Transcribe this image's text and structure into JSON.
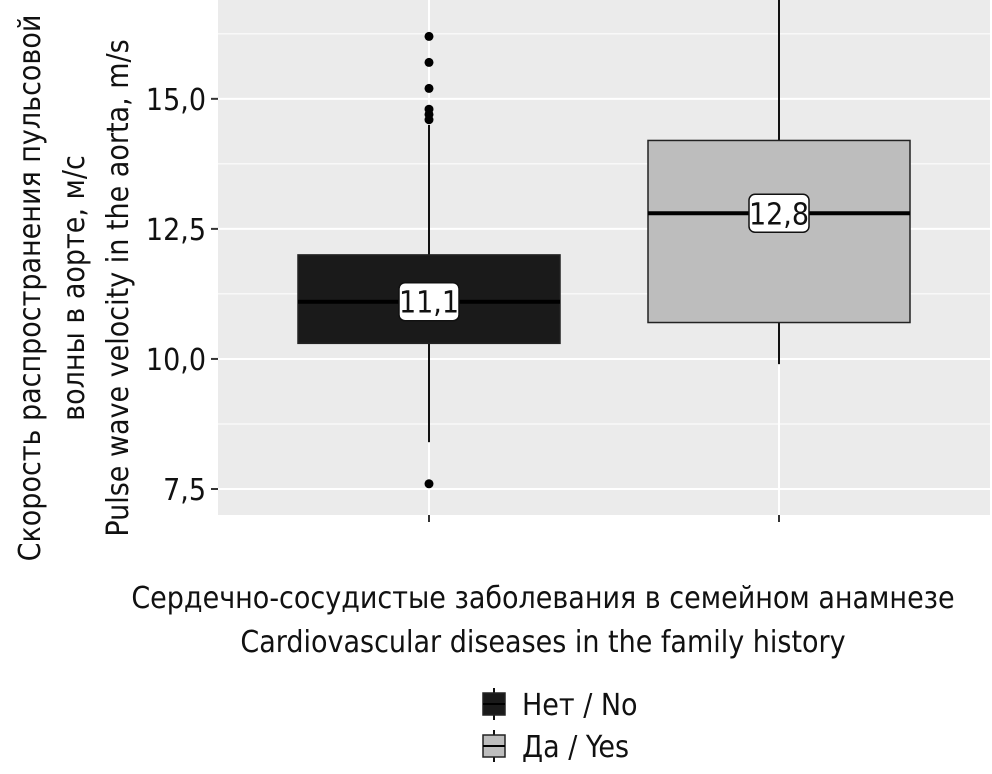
{
  "chart_data": {
    "type": "box",
    "ylabel_lines": [
      "Скорость распространения пульсовой",
      "волны в аорте, м/с",
      "Pulse wave velocity in the aorta, m/s"
    ],
    "xlabel_lines": [
      "Сердечно-сосудистые заболевания в семейном анамнезе",
      "Cardiovascular diseases in the family history"
    ],
    "ylim": [
      7.0,
      16.9
    ],
    "y_ticks": [
      {
        "value": 7.5,
        "label": "7,5"
      },
      {
        "value": 10.0,
        "label": "10,0"
      },
      {
        "value": 12.5,
        "label": "12,5"
      },
      {
        "value": 15.0,
        "label": "15,0"
      }
    ],
    "grid": true,
    "legend_position": "bottom",
    "series": [
      {
        "name": "Нет / No",
        "color": "#1a1a1a",
        "whisker_low": 8.4,
        "q1": 10.3,
        "median": 11.1,
        "q3": 12.0,
        "whisker_high": 14.5,
        "median_label": "11,1",
        "outliers": [
          7.6,
          14.6,
          14.7,
          14.8,
          15.2,
          15.7,
          16.2
        ]
      },
      {
        "name": "Да / Yes",
        "color": "#bdbdbd",
        "whisker_low": 9.9,
        "q1": 10.7,
        "median": 12.8,
        "q3": 14.2,
        "whisker_high": 16.9,
        "median_label": "12,8",
        "outliers": []
      }
    ],
    "colors": {
      "panel_background": "#ebebeb",
      "grid": "#ffffff"
    }
  }
}
